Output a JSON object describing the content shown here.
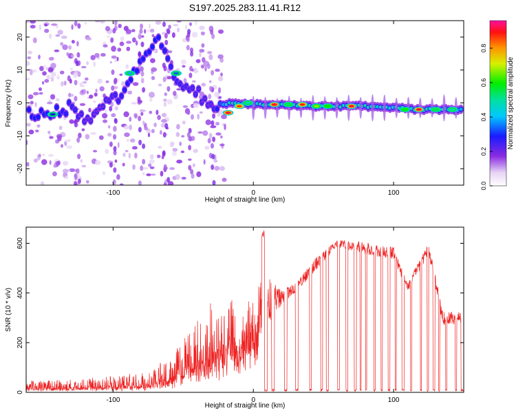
{
  "title": "S197.2025.283.11.41.R12",
  "chart_data": [
    {
      "type": "heatmap",
      "xlabel": "Height of straight line (km)",
      "ylabel": "Frequency (Hz)",
      "xlim": [
        -162,
        150
      ],
      "ylim": [
        -25,
        25
      ],
      "xticks": [
        -100,
        0,
        100
      ],
      "yticks": [
        -20,
        -10,
        0,
        10,
        20
      ],
      "colorbar": {
        "label": "Normalized spectral amplitude",
        "range": [
          0,
          0.96
        ],
        "ticks": [
          0.0,
          0.2,
          0.4,
          0.6,
          0.8
        ]
      },
      "ridge": [
        {
          "x": -150,
          "f": -3.5,
          "a": 0.3
        },
        {
          "x": -140,
          "f": -2.5,
          "a": 0.3
        },
        {
          "x": -128,
          "f": -1.5,
          "a": 0.25
        },
        {
          "x": -118,
          "f": -6,
          "a": 0.2
        },
        {
          "x": -108,
          "f": -2,
          "a": 0.2
        },
        {
          "x": -97,
          "f": 2,
          "a": 0.25
        },
        {
          "x": -88,
          "f": 8,
          "a": 0.3
        },
        {
          "x": -78,
          "f": 12,
          "a": 0.3
        },
        {
          "x": -68,
          "f": 20,
          "a": 0.3
        },
        {
          "x": -55,
          "f": 8,
          "a": 0.25
        },
        {
          "x": -30,
          "f": -1,
          "a": 0.2
        },
        {
          "x": -12,
          "f": 0,
          "a": 0.6
        },
        {
          "x": 0,
          "f": -0.5,
          "a": 0.4
        },
        {
          "x": 20,
          "f": -0.5,
          "a": 0.9
        },
        {
          "x": 40,
          "f": -1,
          "a": 0.85
        },
        {
          "x": 60,
          "f": -1,
          "a": 0.6
        },
        {
          "x": 80,
          "f": -1,
          "a": 0.5
        },
        {
          "x": 100,
          "f": -1.5,
          "a": 0.45
        },
        {
          "x": 118,
          "f": -2,
          "a": 0.9
        },
        {
          "x": 135,
          "f": -2,
          "a": 0.5
        },
        {
          "x": 148,
          "f": -2,
          "a": 0.4
        }
      ],
      "peaks": [
        {
          "x": -143,
          "f": -3.5,
          "a": 0.3
        },
        {
          "x": -88,
          "f": 9,
          "a": 0.4
        },
        {
          "x": -55,
          "f": 9,
          "a": 0.35
        },
        {
          "x": -10,
          "f": -1,
          "a": 0.9
        },
        {
          "x": -18,
          "f": -3,
          "a": 0.95
        },
        {
          "x": -4,
          "f": 0,
          "a": 0.5
        },
        {
          "x": 15,
          "f": -0.5,
          "a": 0.95
        },
        {
          "x": 25,
          "f": -0.5,
          "a": 0.55
        },
        {
          "x": 35,
          "f": -0.5,
          "a": 0.92
        },
        {
          "x": 45,
          "f": -1,
          "a": 0.7
        },
        {
          "x": 53,
          "f": -1,
          "a": 0.62
        },
        {
          "x": 70,
          "f": -1,
          "a": 0.95
        },
        {
          "x": 108,
          "f": -2,
          "a": 0.6
        },
        {
          "x": 118,
          "f": -2,
          "a": 0.95
        },
        {
          "x": 130,
          "f": -2,
          "a": 0.55
        },
        {
          "x": 142,
          "f": -2,
          "a": 0.5
        }
      ]
    },
    {
      "type": "line",
      "xlabel": "Height of straight line (km)",
      "ylabel": "SNR (10 * v/v)",
      "xlim": [
        -162,
        150
      ],
      "ylim": [
        0,
        665
      ],
      "xticks": [
        -100,
        0,
        100
      ],
      "yticks": [
        0,
        200,
        400,
        600
      ],
      "color": "#ee2222",
      "envelope": [
        {
          "x": -162,
          "base": 10,
          "amp": 40
        },
        {
          "x": -110,
          "base": 10,
          "amp": 50
        },
        {
          "x": -80,
          "base": 15,
          "amp": 70
        },
        {
          "x": -60,
          "base": 30,
          "amp": 110
        },
        {
          "x": -40,
          "base": 80,
          "amp": 250
        },
        {
          "x": -25,
          "base": 140,
          "amp": 260
        },
        {
          "x": -10,
          "base": 200,
          "amp": 220
        },
        {
          "x": 0,
          "base": 280,
          "amp": 110
        },
        {
          "x": 7,
          "base": 360,
          "amp": 250
        },
        {
          "x": 20,
          "base": 380,
          "amp": 60
        },
        {
          "x": 30,
          "base": 420,
          "amp": 40
        },
        {
          "x": 45,
          "base": 520,
          "amp": 50
        },
        {
          "x": 60,
          "base": 600,
          "amp": 30
        },
        {
          "x": 80,
          "base": 580,
          "amp": 50
        },
        {
          "x": 100,
          "base": 560,
          "amp": 50
        },
        {
          "x": 110,
          "base": 420,
          "amp": 40
        },
        {
          "x": 125,
          "base": 580,
          "amp": 50
        },
        {
          "x": 135,
          "base": 300,
          "amp": 60
        },
        {
          "x": 150,
          "base": 300,
          "amp": 50
        }
      ],
      "dropouts": [
        [
          8,
          10
        ],
        [
          13,
          15
        ],
        [
          22,
          24
        ],
        [
          30,
          32
        ],
        [
          40,
          41.5
        ],
        [
          48,
          49.5
        ],
        [
          52,
          53.5
        ],
        [
          60,
          61.5
        ],
        [
          66,
          67.5
        ],
        [
          72,
          73.5
        ],
        [
          76,
          77
        ],
        [
          80,
          81
        ],
        [
          86,
          87
        ],
        [
          91,
          92
        ],
        [
          96,
          97.5
        ],
        [
          101,
          102
        ],
        [
          106,
          107.5
        ],
        [
          112,
          113
        ],
        [
          119,
          120
        ],
        [
          124,
          125
        ],
        [
          128,
          129.5
        ],
        [
          132,
          133
        ],
        [
          137,
          138
        ],
        [
          144,
          145
        ],
        [
          148,
          150
        ]
      ]
    }
  ]
}
